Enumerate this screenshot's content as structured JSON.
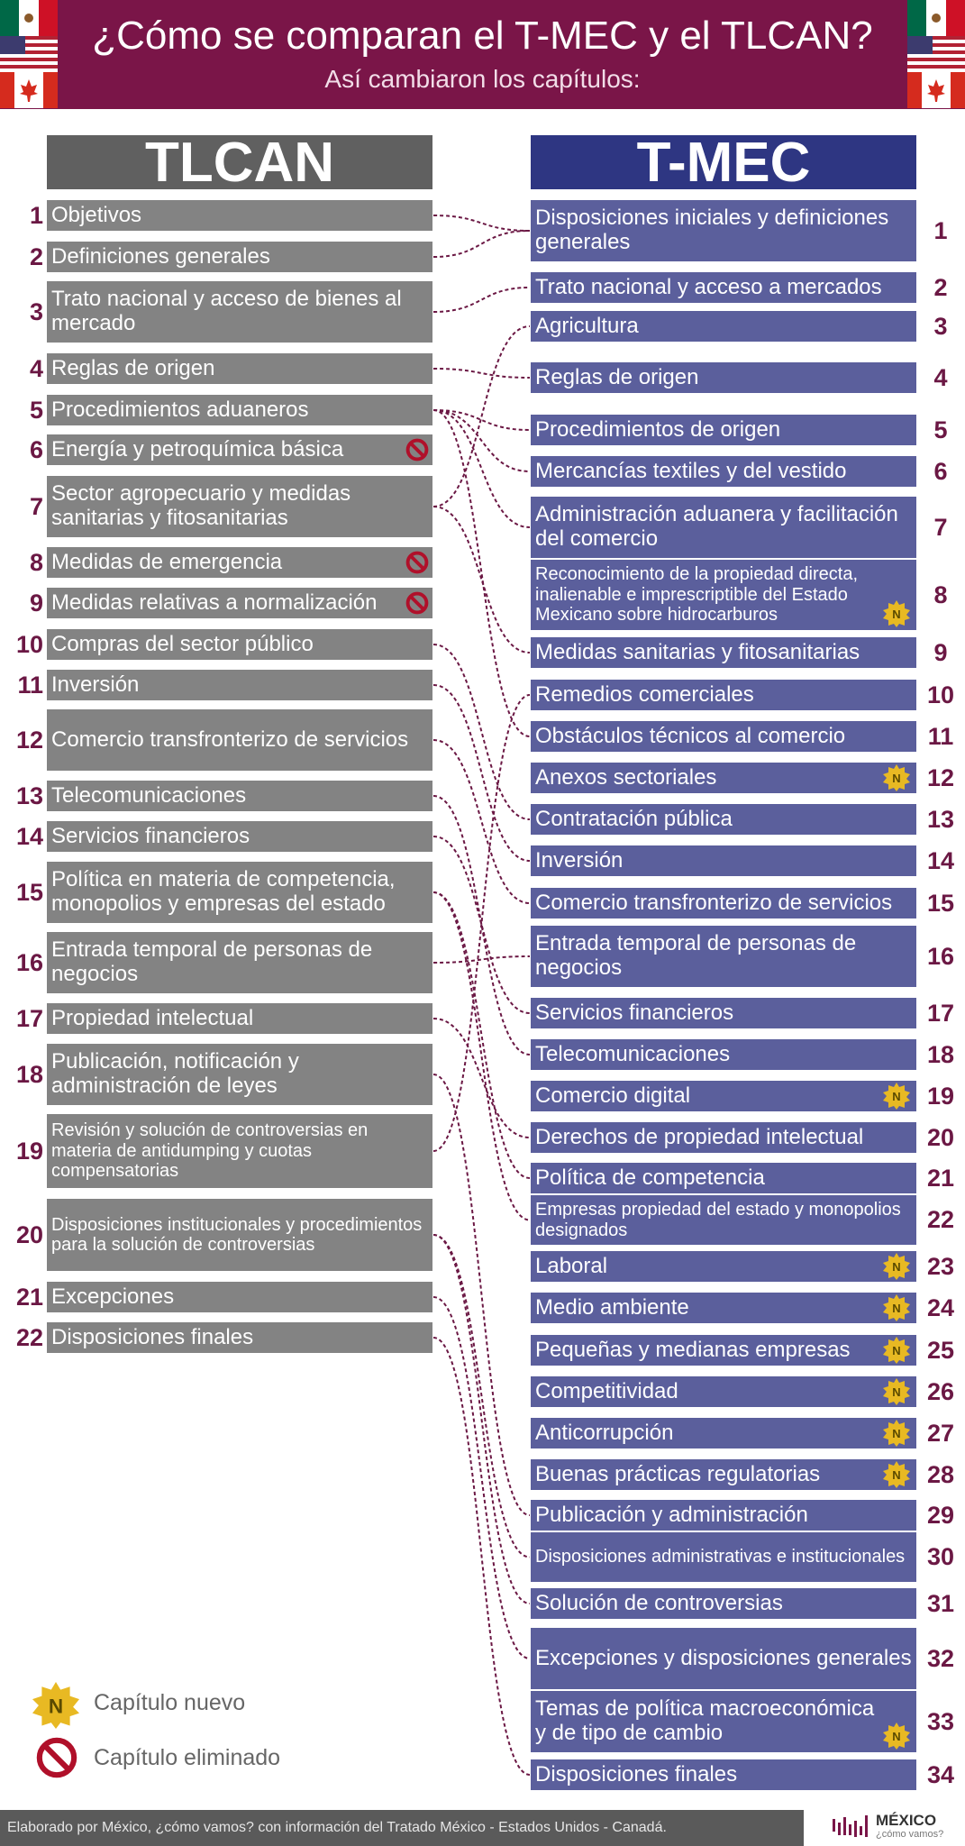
{
  "header": {
    "title": "¿Cómo se comparan el T-MEC y el TLCAN?",
    "subtitle": "Así cambiaron los capítulos:"
  },
  "colors": {
    "header_bg": "#7a1548",
    "tlcan_header": "#606060",
    "tlcan_box": "#838383",
    "tmec_header": "#2e3682",
    "tmec_box": "#5b5f9c",
    "number": "#6b1844",
    "connector": "#6b1844",
    "badge_new": "#e8b923",
    "badge_removed": "#b0102a"
  },
  "flags": [
    "mexico-flag",
    "usa-flag",
    "canada-flag"
  ],
  "tlcan": {
    "title": "TLCAN",
    "chapters": [
      {
        "n": "1",
        "label": "Objetivos"
      },
      {
        "n": "2",
        "label": "Definiciones generales"
      },
      {
        "n": "3",
        "label": "Trato nacional y acceso de bienes al mercado"
      },
      {
        "n": "4",
        "label": "Reglas de origen"
      },
      {
        "n": "5",
        "label": "Procedimientos aduaneros"
      },
      {
        "n": "6",
        "label": "Energía y petroquímica básica",
        "removed": true
      },
      {
        "n": "7",
        "label": "Sector agropecuario y medidas sanitarias y fitosanitarias"
      },
      {
        "n": "8",
        "label": "Medidas de emergencia",
        "removed": true
      },
      {
        "n": "9",
        "label": "Medidas relativas a normalización",
        "removed": true
      },
      {
        "n": "10",
        "label": "Compras del sector público"
      },
      {
        "n": "11",
        "label": "Inversión"
      },
      {
        "n": "12",
        "label": "Comercio transfronterizo de servicios"
      },
      {
        "n": "13",
        "label": "Telecomunicaciones"
      },
      {
        "n": "14",
        "label": "Servicios financieros"
      },
      {
        "n": "15",
        "label": "Política en materia de competencia, monopolios y empresas del estado"
      },
      {
        "n": "16",
        "label": "Entrada temporal de personas de negocios"
      },
      {
        "n": "17",
        "label": "Propiedad intelectual"
      },
      {
        "n": "18",
        "label": "Publicación, notificación y administración de leyes"
      },
      {
        "n": "19",
        "label": "Revisión y solución de controversias en materia de antidumping y cuotas compensatorias"
      },
      {
        "n": "20",
        "label": "Disposiciones institucionales y procedimientos para la solución de controversias"
      },
      {
        "n": "21",
        "label": "Excepciones"
      },
      {
        "n": "22",
        "label": "Disposiciones finales"
      }
    ]
  },
  "tmec": {
    "title": "T-MEC",
    "chapters": [
      {
        "n": "1",
        "label": "Disposiciones iniciales y definiciones generales"
      },
      {
        "n": "2",
        "label": "Trato nacional y acceso a mercados"
      },
      {
        "n": "3",
        "label": "Agricultura"
      },
      {
        "n": "4",
        "label": "Reglas de origen"
      },
      {
        "n": "5",
        "label": "Procedimientos de origen"
      },
      {
        "n": "6",
        "label": "Mercancías textiles y del vestido"
      },
      {
        "n": "7",
        "label": "Administración aduanera y facilitación del comercio"
      },
      {
        "n": "8",
        "label": "Reconocimiento de la propiedad directa, inalienable e imprescriptible del Estado Mexicano sobre hidrocarburos",
        "new": true
      },
      {
        "n": "9",
        "label": "Medidas sanitarias y fitosanitarias"
      },
      {
        "n": "10",
        "label": "Remedios comerciales"
      },
      {
        "n": "11",
        "label": "Obstáculos técnicos al comercio"
      },
      {
        "n": "12",
        "label": "Anexos sectoriales",
        "new": true
      },
      {
        "n": "13",
        "label": "Contratación pública"
      },
      {
        "n": "14",
        "label": "Inversión"
      },
      {
        "n": "15",
        "label": "Comercio transfronterizo de servicios"
      },
      {
        "n": "16",
        "label": "Entrada temporal de personas de negocios"
      },
      {
        "n": "17",
        "label": "Servicios financieros"
      },
      {
        "n": "18",
        "label": "Telecomunicaciones"
      },
      {
        "n": "19",
        "label": "Comercio digital",
        "new": true
      },
      {
        "n": "20",
        "label": "Derechos de propiedad intelectual"
      },
      {
        "n": "21",
        "label": "Política de competencia"
      },
      {
        "n": "22",
        "label": "Empresas propiedad del estado y monopolios designados"
      },
      {
        "n": "23",
        "label": "Laboral",
        "new": true
      },
      {
        "n": "24",
        "label": "Medio ambiente",
        "new": true
      },
      {
        "n": "25",
        "label": "Pequeñas y medianas empresas",
        "new": true
      },
      {
        "n": "26",
        "label": "Competitividad",
        "new": true
      },
      {
        "n": "27",
        "label": "Anticorrupción",
        "new": true
      },
      {
        "n": "28",
        "label": "Buenas prácticas regulatorias",
        "new": true
      },
      {
        "n": "29",
        "label": "Publicación y administración"
      },
      {
        "n": "30",
        "label": "Disposiciones administrativas e institucionales"
      },
      {
        "n": "31",
        "label": "Solución de controversias"
      },
      {
        "n": "32",
        "label": "Excepciones y disposiciones generales"
      },
      {
        "n": "33",
        "label": "Temas de política macroeconómica y de tipo de cambio",
        "new": true
      },
      {
        "n": "34",
        "label": "Disposiciones finales"
      }
    ]
  },
  "connections": [
    [
      1,
      1
    ],
    [
      2,
      1
    ],
    [
      3,
      2
    ],
    [
      7,
      3
    ],
    [
      4,
      4
    ],
    [
      5,
      5
    ],
    [
      5,
      6
    ],
    [
      5,
      7
    ],
    [
      7,
      9
    ],
    [
      5,
      11
    ],
    [
      19,
      10
    ],
    [
      10,
      13
    ],
    [
      11,
      14
    ],
    [
      12,
      15
    ],
    [
      16,
      16
    ],
    [
      14,
      17
    ],
    [
      13,
      18
    ],
    [
      17,
      20
    ],
    [
      15,
      21
    ],
    [
      15,
      22
    ],
    [
      18,
      29
    ],
    [
      20,
      30
    ],
    [
      20,
      31
    ],
    [
      21,
      32
    ],
    [
      22,
      34
    ]
  ],
  "legend": {
    "new_label": "Capítulo nuevo",
    "removed_label": "Capítulo eliminado",
    "new_badge_letter": "N"
  },
  "footer": {
    "text": "Elaborado por México, ¿cómo vamos? con información del Tratado México - Estados Unidos - Canadá.",
    "logo_word": "MÉXICO",
    "logo_sub": "¿cómo vamos?"
  }
}
